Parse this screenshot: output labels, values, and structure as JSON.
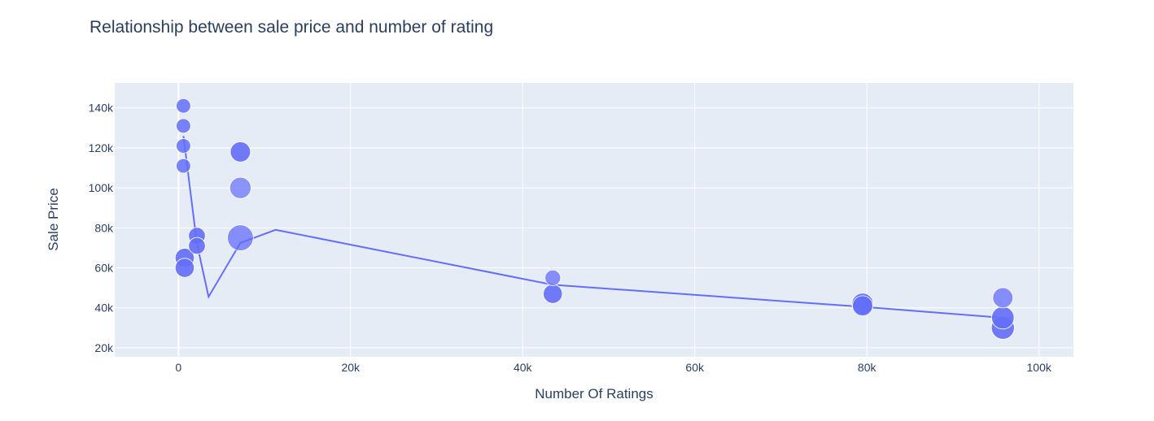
{
  "chart_data": {
    "type": "scatter",
    "title": "Relationship between sale price and number of rating",
    "xlabel": "Number Of Ratings",
    "ylabel": "Sale Price",
    "xlim": [
      -7400,
      104000
    ],
    "ylim": [
      15500,
      152500
    ],
    "x_ticks": [
      0,
      20000,
      40000,
      60000,
      80000,
      100000
    ],
    "x_tick_labels": [
      "0",
      "20k",
      "40k",
      "60k",
      "80k",
      "100k"
    ],
    "y_ticks": [
      20000,
      40000,
      60000,
      80000,
      100000,
      120000,
      140000
    ],
    "y_tick_labels": [
      "20k",
      "40k",
      "60k",
      "80k",
      "100k",
      "120k",
      "140k"
    ],
    "grid": true,
    "bubbles": [
      {
        "x": 580,
        "y": 141000,
        "size": 0.35,
        "opacity": 0.85
      },
      {
        "x": 580,
        "y": 131000,
        "size": 0.35,
        "opacity": 0.85
      },
      {
        "x": 580,
        "y": 121000,
        "size": 0.35,
        "opacity": 0.85
      },
      {
        "x": 580,
        "y": 111000,
        "size": 0.35,
        "opacity": 0.85
      },
      {
        "x": 730,
        "y": 65000,
        "size": 0.55,
        "opacity": 0.9
      },
      {
        "x": 730,
        "y": 60000,
        "size": 0.55,
        "opacity": 0.9
      },
      {
        "x": 2150,
        "y": 76000,
        "size": 0.45,
        "opacity": 0.9
      },
      {
        "x": 2150,
        "y": 71000,
        "size": 0.45,
        "opacity": 0.9
      },
      {
        "x": 7200,
        "y": 118000,
        "size": 0.6,
        "opacity": 0.9
      },
      {
        "x": 7200,
        "y": 100000,
        "size": 0.65,
        "opacity": 0.7
      },
      {
        "x": 7200,
        "y": 75000,
        "size": 0.85,
        "opacity": 0.75
      },
      {
        "x": 43500,
        "y": 55000,
        "size": 0.4,
        "opacity": 0.75
      },
      {
        "x": 43500,
        "y": 47000,
        "size": 0.55,
        "opacity": 0.9
      },
      {
        "x": 79500,
        "y": 41000,
        "size": 0.6,
        "opacity": 0.9
      },
      {
        "x": 79500,
        "y": 42000,
        "size": 0.65,
        "opacity": 0.9
      },
      {
        "x": 95800,
        "y": 45000,
        "size": 0.6,
        "opacity": 0.75
      },
      {
        "x": 95800,
        "y": 35000,
        "size": 0.7,
        "opacity": 0.9
      },
      {
        "x": 95800,
        "y": 30000,
        "size": 0.72,
        "opacity": 0.9
      }
    ],
    "line": {
      "x": [
        580,
        2150,
        3500,
        7200,
        11300,
        43500,
        79500,
        95800
      ],
      "y": [
        126000,
        72000,
        45500,
        72500,
        79000,
        51500,
        40500,
        35000
      ]
    },
    "colors": {
      "marker": "#636efa",
      "line": "#636efa",
      "plot_bg": "#e5ecf6",
      "grid": "#ffffff",
      "text": "#2a3f5f"
    }
  }
}
